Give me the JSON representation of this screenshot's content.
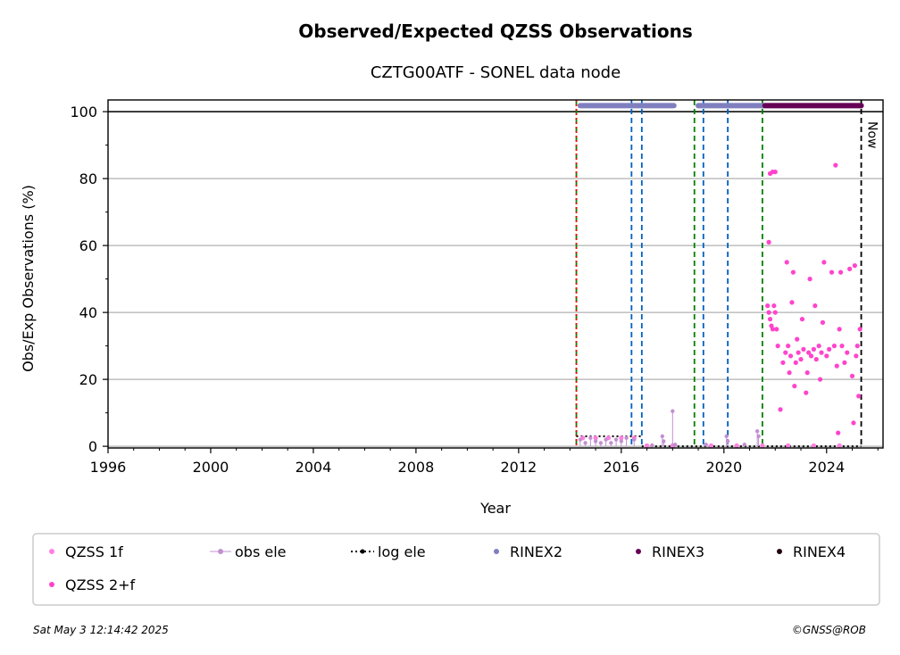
{
  "chart_data": {
    "type": "scatter",
    "title": "Observed/Expected QZSS Observations",
    "subtitle": "CZTG00ATF - SONEL data node",
    "xlabel": "Year",
    "ylabel": "Obs/Exp Observations (%)",
    "xlim": [
      1996,
      2026.2
    ],
    "ylim": [
      -0.5,
      103.5
    ],
    "x_ticks": [
      1996,
      2000,
      2004,
      2008,
      2012,
      2016,
      2020,
      2024
    ],
    "y_ticks": [
      0,
      20,
      40,
      60,
      80,
      100
    ],
    "grid": "horizontal",
    "reference_line": 100,
    "now_label": "Now",
    "now_x": 2025.35,
    "vlines": [
      {
        "x": 2014.25,
        "color": "#008000",
        "style": "dashed"
      },
      {
        "x": 2014.25,
        "color": "#ff0000",
        "style": "dotted"
      },
      {
        "x": 2016.4,
        "color": "#0060c0",
        "style": "dashed"
      },
      {
        "x": 2016.8,
        "color": "#0060c0",
        "style": "dashed"
      },
      {
        "x": 2018.85,
        "color": "#008000",
        "style": "dashed"
      },
      {
        "x": 2019.2,
        "color": "#0060c0",
        "style": "dashed"
      },
      {
        "x": 2020.15,
        "color": "#0060c0",
        "style": "dashed"
      },
      {
        "x": 2021.5,
        "color": "#008000",
        "style": "dashed"
      },
      {
        "x": 2025.35,
        "color": "#000000",
        "style": "dashed"
      }
    ],
    "rinex_bars": [
      {
        "name": "RINEX2",
        "color": "#7f7fbf",
        "segments": [
          [
            2014.4,
            2018.05
          ],
          [
            2019.0,
            2021.6
          ]
        ]
      },
      {
        "name": "RINEX3",
        "color": "#660055",
        "segments": [
          [
            2021.6,
            2025.35
          ]
        ]
      }
    ],
    "log_ele": {
      "name": "log ele",
      "color": "#000000",
      "segments": [
        [
          2014.25,
          2016.8,
          3
        ],
        [
          2016.8,
          2025.35,
          0
        ]
      ]
    },
    "obs_ele": {
      "name": "obs ele",
      "color": "#c38fd0",
      "points": [
        [
          2014.4,
          2
        ],
        [
          2014.6,
          1
        ],
        [
          2014.8,
          2.5
        ],
        [
          2015.0,
          1.5
        ],
        [
          2015.2,
          1
        ],
        [
          2015.4,
          2
        ],
        [
          2015.6,
          1
        ],
        [
          2015.8,
          2
        ],
        [
          2016.0,
          1.5
        ],
        [
          2016.2,
          2.5
        ],
        [
          2016.5,
          2
        ],
        [
          2017.2,
          0.3
        ],
        [
          2017.6,
          3
        ],
        [
          2017.65,
          1.5
        ],
        [
          2018.0,
          10.5
        ],
        [
          2018.1,
          0.5
        ],
        [
          2019.3,
          0.5
        ],
        [
          2020.1,
          3
        ],
        [
          2020.15,
          1.5
        ],
        [
          2020.8,
          0.5
        ],
        [
          2021.3,
          4.5
        ],
        [
          2021.35,
          3
        ]
      ]
    },
    "series": [
      {
        "name": "QZSS 1f",
        "color": "#ff80e0",
        "values": [
          [
            2014.5,
            2.5
          ],
          [
            2015.0,
            2.5
          ],
          [
            2015.5,
            2.5
          ],
          [
            2016.0,
            2.5
          ],
          [
            2016.5,
            2.5
          ],
          [
            2017.0,
            0.2
          ],
          [
            2018.0,
            0.2
          ],
          [
            2019.5,
            0.2
          ],
          [
            2020.5,
            0.2
          ],
          [
            2021.5,
            0.2
          ],
          [
            2022.5,
            0.2
          ],
          [
            2023.5,
            0.2
          ],
          [
            2024.5,
            0.2
          ]
        ]
      },
      {
        "name": "QZSS 2+f",
        "color": "#ff44cc",
        "values": [
          [
            2021.75,
            61
          ],
          [
            2021.8,
            81.5
          ],
          [
            2021.9,
            82
          ],
          [
            2022.0,
            82
          ],
          [
            2021.7,
            42
          ],
          [
            2021.75,
            40
          ],
          [
            2021.8,
            38
          ],
          [
            2021.85,
            36
          ],
          [
            2021.9,
            35
          ],
          [
            2021.95,
            42
          ],
          [
            2022.0,
            40
          ],
          [
            2022.05,
            35
          ],
          [
            2022.1,
            30
          ],
          [
            2022.2,
            11
          ],
          [
            2022.3,
            25
          ],
          [
            2022.4,
            28
          ],
          [
            2022.45,
            55
          ],
          [
            2022.5,
            30
          ],
          [
            2022.55,
            22
          ],
          [
            2022.6,
            27
          ],
          [
            2022.65,
            43
          ],
          [
            2022.7,
            52
          ],
          [
            2022.75,
            18
          ],
          [
            2022.8,
            25
          ],
          [
            2022.85,
            32
          ],
          [
            2022.9,
            28
          ],
          [
            2023.0,
            26
          ],
          [
            2023.05,
            38
          ],
          [
            2023.1,
            29
          ],
          [
            2023.2,
            16
          ],
          [
            2023.25,
            22
          ],
          [
            2023.3,
            28
          ],
          [
            2023.35,
            50
          ],
          [
            2023.4,
            27
          ],
          [
            2023.5,
            29
          ],
          [
            2023.55,
            42
          ],
          [
            2023.6,
            26
          ],
          [
            2023.7,
            30
          ],
          [
            2023.75,
            20
          ],
          [
            2023.8,
            28
          ],
          [
            2023.85,
            37
          ],
          [
            2023.9,
            55
          ],
          [
            2024.0,
            27
          ],
          [
            2024.1,
            29
          ],
          [
            2024.2,
            52
          ],
          [
            2024.3,
            30
          ],
          [
            2024.35,
            84
          ],
          [
            2024.4,
            24
          ],
          [
            2024.45,
            4
          ],
          [
            2024.5,
            35
          ],
          [
            2024.55,
            52
          ],
          [
            2024.6,
            30
          ],
          [
            2024.7,
            25
          ],
          [
            2024.8,
            28
          ],
          [
            2024.9,
            53
          ],
          [
            2025.0,
            21
          ],
          [
            2025.05,
            7
          ],
          [
            2025.1,
            54
          ],
          [
            2025.15,
            27
          ],
          [
            2025.2,
            30
          ],
          [
            2025.25,
            15
          ],
          [
            2025.3,
            35
          ]
        ]
      }
    ],
    "legend": {
      "placement": "bottom",
      "items": [
        {
          "label": "QZSS 1f",
          "color": "#ff80e0",
          "marker": "dot"
        },
        {
          "label": "obs ele",
          "color": "#c38fd0",
          "marker": "line-dot"
        },
        {
          "label": "log ele",
          "color": "#000000",
          "marker": "dotted-line"
        },
        {
          "label": "RINEX2",
          "color": "#7f7fbf",
          "marker": "dot"
        },
        {
          "label": "RINEX3",
          "color": "#660055",
          "marker": "dot"
        },
        {
          "label": "RINEX4",
          "color": "#220011",
          "marker": "dot"
        },
        {
          "label": "QZSS 2+f",
          "color": "#ff44cc",
          "marker": "dot"
        }
      ]
    }
  },
  "footer": {
    "timestamp": "Sat May  3 12:14:42 2025",
    "credit": "©GNSS@ROB"
  }
}
